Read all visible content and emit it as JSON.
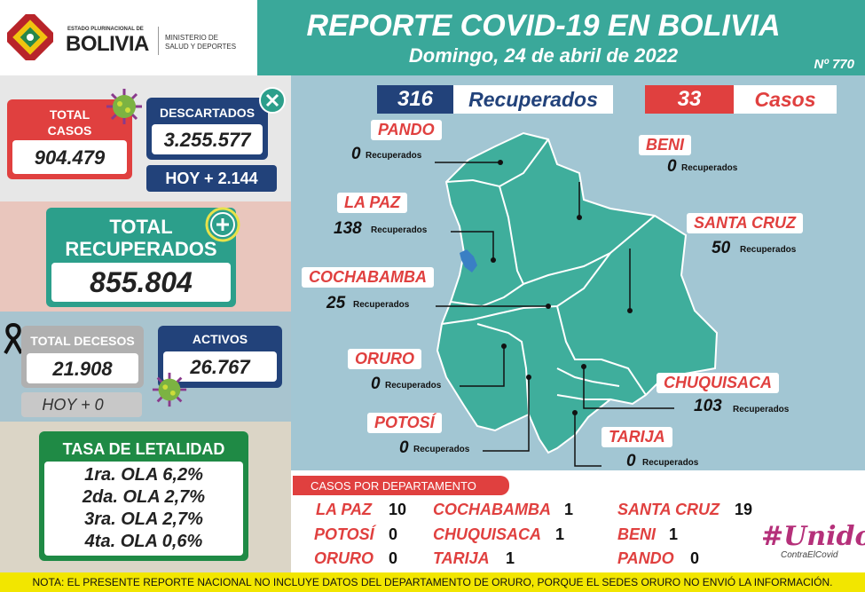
{
  "header": {
    "title": "REPORTE COVID-19 EN BOLIVIA",
    "date": "Domingo, 24 de abril de 2022",
    "number": "Nº 770",
    "logo_small": "ESTADO PLURINACIONAL DE",
    "logo_big": "BOLIVIA",
    "ministry_line1": "MINISTERIO DE",
    "ministry_line2": "SALUD Y DEPORTES"
  },
  "stats": {
    "total_cases_label_1": "TOTAL",
    "total_cases_label_2": "CASOS",
    "total_cases": "904.479",
    "discarded_label": "DESCARTADOS",
    "discarded": "3.255.577",
    "discarded_today": "HOY + 2.144",
    "recovered_label_1": "TOTAL",
    "recovered_label_2": "RECUPERADOS",
    "recovered": "855.804",
    "deaths_label": "TOTAL DECESOS",
    "deaths": "21.908",
    "deaths_today": "HOY + 0",
    "active_label": "ACTIVOS",
    "active": "26.767"
  },
  "lethality": {
    "label": "TASA DE LETALIDAD",
    "waves": [
      "1ra. OLA 6,2%",
      "2da. OLA 2,7%",
      "3ra. OLA 2,7%",
      "4ta. OLA 0,6%"
    ]
  },
  "map": {
    "recovered_total": "316",
    "recovered_label": "Recuperados",
    "cases_total": "33",
    "cases_label": "Casos",
    "rec_word": "Recuperados",
    "departments": [
      {
        "name": "PANDO",
        "value": "0"
      },
      {
        "name": "BENI",
        "value": "0"
      },
      {
        "name": "LA PAZ",
        "value": "138"
      },
      {
        "name": "SANTA CRUZ",
        "value": "50"
      },
      {
        "name": "COCHABAMBA",
        "value": "25"
      },
      {
        "name": "ORURO",
        "value": "0"
      },
      {
        "name": "CHUQUISACA",
        "value": "103"
      },
      {
        "name": "POTOSÍ",
        "value": "0"
      },
      {
        "name": "TARIJA",
        "value": "0"
      }
    ]
  },
  "cases_by_department": {
    "header": "CASOS POR DEPARTAMENTO",
    "items": [
      {
        "name": "LA PAZ",
        "value": "10"
      },
      {
        "name": "COCHABAMBA",
        "value": "1"
      },
      {
        "name": "SANTA CRUZ",
        "value": "19"
      },
      {
        "name": "POTOSÍ",
        "value": "0"
      },
      {
        "name": "CHUQUISACA",
        "value": "1"
      },
      {
        "name": "BENI",
        "value": "1"
      },
      {
        "name": "ORURO",
        "value": "0"
      },
      {
        "name": "TARIJA",
        "value": "1"
      },
      {
        "name": "PANDO",
        "value": "0"
      }
    ]
  },
  "campaign": {
    "hashtag": "#Unidos",
    "subline": "ContraElCovid"
  },
  "footer": {
    "note": "NOTA: EL PRESENTE REPORTE NACIONAL NO INCLUYE DATOS DEL DEPARTAMENTO DE ORURO, PORQUE EL SEDES ORURO NO ENVIÓ LA INFORMACIÓN."
  },
  "colors": {
    "teal": "#3aa89a",
    "red": "#e0403f",
    "navy": "#22427a",
    "green": "#1f8a45",
    "map_fill": "#3fae9c",
    "yellow": "#f2e600"
  }
}
